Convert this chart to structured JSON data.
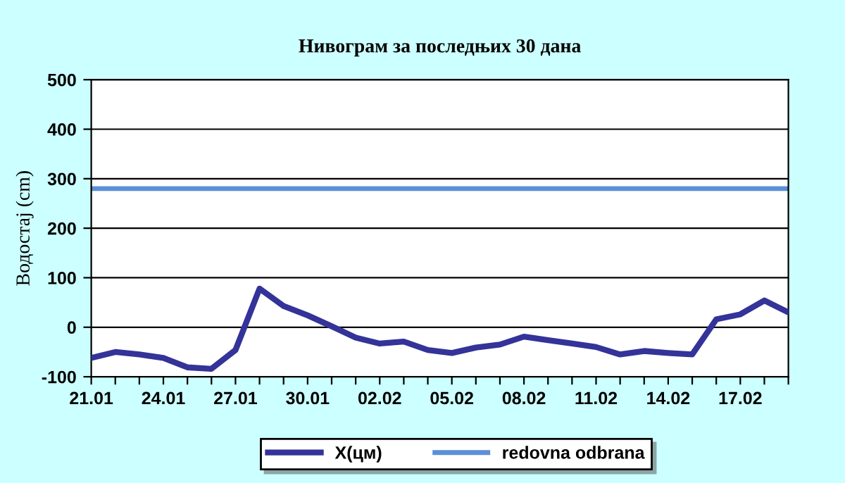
{
  "chart_data": {
    "type": "line",
    "title": "Нивограм за последњих 30 дана",
    "ylabel": "Водостај (cm)",
    "categories": [
      "21.01",
      null,
      null,
      "24.01",
      null,
      null,
      "27.01",
      null,
      null,
      "30.01",
      null,
      null,
      "02.02",
      null,
      null,
      "05.02",
      null,
      null,
      "08.02",
      null,
      null,
      "11.02",
      null,
      null,
      "14.02",
      null,
      null,
      "17.02",
      null,
      null
    ],
    "series": [
      {
        "name": "X(цм)",
        "color": "#333399",
        "values": [
          -62,
          -50,
          -55,
          -62,
          -81,
          -84,
          -46,
          78,
          43,
          24,
          2,
          -21,
          -33,
          -29,
          -46,
          -52,
          -41,
          -35,
          -19,
          -26,
          -33,
          -40,
          -55,
          -48,
          -52,
          -55,
          16,
          26,
          54,
          30
        ]
      }
    ],
    "ref_lines": [
      {
        "axis": "y",
        "value": 280,
        "label": "redovna odbrana",
        "color": "#5b8fd8",
        "line_style": "solid"
      }
    ],
    "ylim": [
      -100,
      500
    ],
    "yticks": [
      -100,
      0,
      100,
      200,
      300,
      400,
      500
    ],
    "grid": "y",
    "legend": "bottom",
    "marker": "none",
    "line_style": "solid"
  }
}
